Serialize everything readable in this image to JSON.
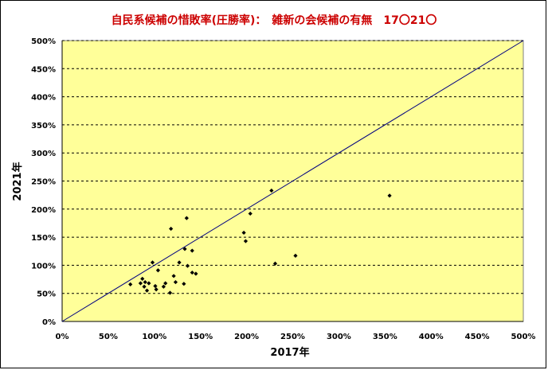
{
  "colors": {
    "title": "#cc0000",
    "plot_bg": "#ffff99",
    "grid": "#000000",
    "points": "#000000",
    "diagonal": "#000080"
  },
  "chart_data": {
    "type": "scatter",
    "title": "自民系候補の惜敗率(圧勝率)：　雑新の会候補の有無　17〇21〇",
    "xlabel": "2017年",
    "ylabel": "2021年",
    "xlim": [
      0,
      500
    ],
    "ylim": [
      0,
      500
    ],
    "x_ticks": [
      "0%",
      "50%",
      "100%",
      "150%",
      "200%",
      "250%",
      "300%",
      "350%",
      "400%",
      "450%",
      "500%"
    ],
    "y_ticks": [
      "0%",
      "50%",
      "100%",
      "150%",
      "200%",
      "250%",
      "300%",
      "350%",
      "400%",
      "450%",
      "500%"
    ],
    "grid": true,
    "reference_line": {
      "from": [
        0,
        0
      ],
      "to": [
        500,
        500
      ]
    },
    "points": [
      {
        "x": 74,
        "y": 66
      },
      {
        "x": 85,
        "y": 68
      },
      {
        "x": 87,
        "y": 76
      },
      {
        "x": 89,
        "y": 62
      },
      {
        "x": 90,
        "y": 70
      },
      {
        "x": 92,
        "y": 55
      },
      {
        "x": 94,
        "y": 68
      },
      {
        "x": 98,
        "y": 105
      },
      {
        "x": 101,
        "y": 63
      },
      {
        "x": 102,
        "y": 57
      },
      {
        "x": 104,
        "y": 91
      },
      {
        "x": 110,
        "y": 62
      },
      {
        "x": 112,
        "y": 68
      },
      {
        "x": 117,
        "y": 51
      },
      {
        "x": 118,
        "y": 165
      },
      {
        "x": 121,
        "y": 81
      },
      {
        "x": 123,
        "y": 70
      },
      {
        "x": 127,
        "y": 105
      },
      {
        "x": 132,
        "y": 67
      },
      {
        "x": 133,
        "y": 129
      },
      {
        "x": 135,
        "y": 184
      },
      {
        "x": 136,
        "y": 99
      },
      {
        "x": 141,
        "y": 126
      },
      {
        "x": 141,
        "y": 87
      },
      {
        "x": 145,
        "y": 85
      },
      {
        "x": 197,
        "y": 158
      },
      {
        "x": 199,
        "y": 143
      },
      {
        "x": 204,
        "y": 192
      },
      {
        "x": 227,
        "y": 233
      },
      {
        "x": 231,
        "y": 103
      },
      {
        "x": 253,
        "y": 117
      },
      {
        "x": 355,
        "y": 224
      }
    ]
  }
}
